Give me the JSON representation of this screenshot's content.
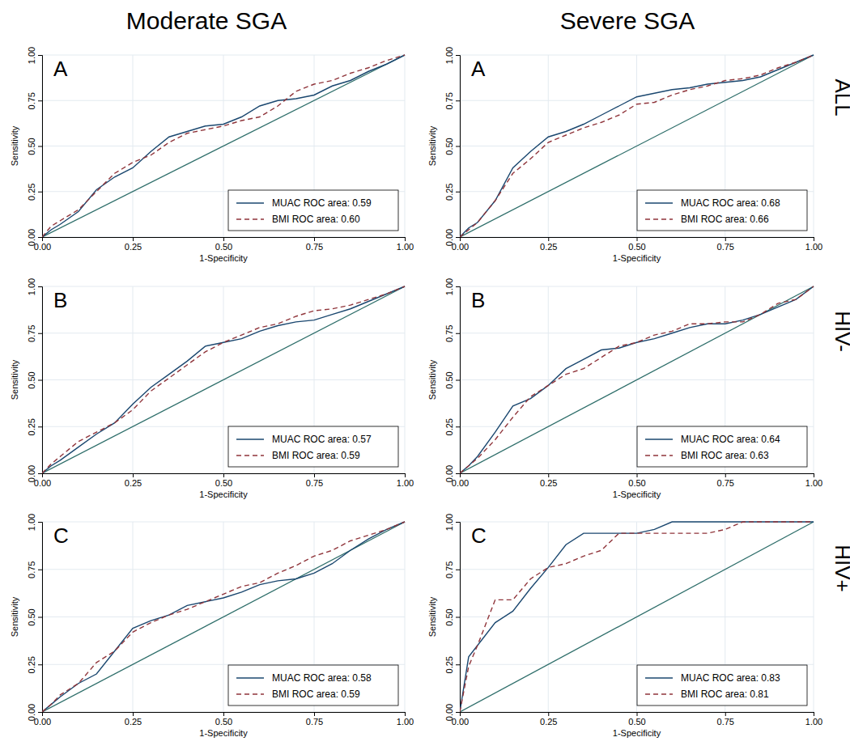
{
  "column_titles": [
    "Moderate SGA",
    "Severe SGA"
  ],
  "row_labels": [
    "ALL",
    "HIV-",
    "HIV+"
  ],
  "chart_data": [
    {
      "type": "line",
      "title": "A",
      "x_label": "1-Specificity",
      "y_label": "Sensitivity",
      "x": [
        0,
        0.025,
        0.05,
        0.1,
        0.15,
        0.2,
        0.25,
        0.3,
        0.35,
        0.4,
        0.45,
        0.5,
        0.55,
        0.6,
        0.65,
        0.7,
        0.75,
        0.8,
        0.85,
        0.9,
        0.95,
        1
      ],
      "xlim": [
        0,
        1
      ],
      "ylim": [
        0,
        1
      ],
      "xticks": [
        {
          "value": 0,
          "label": "0.00"
        },
        {
          "value": 0.25,
          "label": "0.25"
        },
        {
          "value": 0.5,
          "label": "0.50"
        },
        {
          "value": 0.75,
          "label": "0.75"
        },
        {
          "value": 1,
          "label": "1.00"
        }
      ],
      "yticks": [
        {
          "value": 0,
          "label": "0.00"
        },
        {
          "value": 0.25,
          "label": "0.25"
        },
        {
          "value": 0.5,
          "label": "0.50"
        },
        {
          "value": 0.75,
          "label": "0.75"
        },
        {
          "value": 1,
          "label": "1.00"
        }
      ],
      "grid": true,
      "legend": "lower right",
      "reference_line": {
        "x": [
          0,
          1
        ],
        "y": [
          0,
          1
        ],
        "color": "#2e6e6a"
      },
      "series": [
        {
          "name": "MUAC ROC area: 0.59",
          "color": "#1a476f",
          "line_style": "solid",
          "values": [
            0,
            0.04,
            0.07,
            0.14,
            0.26,
            0.33,
            0.38,
            0.47,
            0.55,
            0.58,
            0.61,
            0.62,
            0.66,
            0.72,
            0.75,
            0.76,
            0.78,
            0.83,
            0.86,
            0.91,
            0.95,
            1
          ]
        },
        {
          "name": "BMI ROC area: 0.60",
          "color": "#90353b",
          "line_style": "dashed",
          "values": [
            0,
            0.06,
            0.09,
            0.15,
            0.25,
            0.35,
            0.41,
            0.45,
            0.52,
            0.57,
            0.59,
            0.61,
            0.64,
            0.66,
            0.72,
            0.8,
            0.84,
            0.86,
            0.9,
            0.93,
            0.97,
            1
          ]
        }
      ]
    },
    {
      "type": "line",
      "title": "A",
      "x_label": "1-Specificity",
      "y_label": "Sensitivity",
      "x": [
        0,
        0.025,
        0.05,
        0.1,
        0.15,
        0.2,
        0.25,
        0.3,
        0.35,
        0.4,
        0.45,
        0.5,
        0.55,
        0.6,
        0.65,
        0.7,
        0.75,
        0.8,
        0.85,
        0.9,
        0.95,
        1
      ],
      "xlim": [
        0,
        1
      ],
      "ylim": [
        0,
        1
      ],
      "xticks": [
        {
          "value": 0,
          "label": "0.00"
        },
        {
          "value": 0.25,
          "label": "0.25"
        },
        {
          "value": 0.5,
          "label": "0.50"
        },
        {
          "value": 0.75,
          "label": "0.75"
        },
        {
          "value": 1,
          "label": "1.00"
        }
      ],
      "yticks": [
        {
          "value": 0,
          "label": "0.00"
        },
        {
          "value": 0.25,
          "label": "0.25"
        },
        {
          "value": 0.5,
          "label": "0.50"
        },
        {
          "value": 0.75,
          "label": "0.75"
        },
        {
          "value": 1,
          "label": "1.00"
        }
      ],
      "grid": true,
      "legend": "lower right",
      "reference_line": {
        "x": [
          0,
          1
        ],
        "y": [
          0,
          1
        ],
        "color": "#2e6e6a"
      },
      "series": [
        {
          "name": "MUAC ROC area: 0.68",
          "color": "#1a476f",
          "line_style": "solid",
          "values": [
            0,
            0.05,
            0.08,
            0.2,
            0.38,
            0.47,
            0.55,
            0.58,
            0.62,
            0.67,
            0.72,
            0.77,
            0.79,
            0.81,
            0.82,
            0.84,
            0.85,
            0.86,
            0.88,
            0.92,
            0.96,
            1
          ]
        },
        {
          "name": "BMI ROC area: 0.66",
          "color": "#90353b",
          "line_style": "dashed",
          "values": [
            0,
            0.04,
            0.08,
            0.2,
            0.35,
            0.43,
            0.52,
            0.56,
            0.6,
            0.63,
            0.67,
            0.73,
            0.74,
            0.78,
            0.81,
            0.83,
            0.86,
            0.87,
            0.89,
            0.93,
            0.96,
            1
          ]
        }
      ]
    },
    {
      "type": "line",
      "title": "B",
      "x_label": "1-Specificity",
      "y_label": "Sensitivity",
      "x": [
        0,
        0.025,
        0.05,
        0.1,
        0.15,
        0.2,
        0.25,
        0.3,
        0.35,
        0.4,
        0.45,
        0.5,
        0.55,
        0.6,
        0.65,
        0.7,
        0.75,
        0.8,
        0.85,
        0.9,
        0.95,
        1
      ],
      "xlim": [
        0,
        1
      ],
      "ylim": [
        0,
        1
      ],
      "xticks": [
        {
          "value": 0,
          "label": "0.00"
        },
        {
          "value": 0.25,
          "label": "0.25"
        },
        {
          "value": 0.5,
          "label": "0.50"
        },
        {
          "value": 0.75,
          "label": "0.75"
        },
        {
          "value": 1,
          "label": "1.00"
        }
      ],
      "yticks": [
        {
          "value": 0,
          "label": "0.00"
        },
        {
          "value": 0.25,
          "label": "0.25"
        },
        {
          "value": 0.5,
          "label": "0.50"
        },
        {
          "value": 0.75,
          "label": "0.75"
        },
        {
          "value": 1,
          "label": "1.00"
        }
      ],
      "grid": true,
      "legend": "lower right",
      "reference_line": {
        "x": [
          0,
          1
        ],
        "y": [
          0,
          1
        ],
        "color": "#2e6e6a"
      },
      "series": [
        {
          "name": "MUAC ROC area: 0.57",
          "color": "#1a476f",
          "line_style": "solid",
          "values": [
            0,
            0.04,
            0.07,
            0.14,
            0.21,
            0.27,
            0.37,
            0.46,
            0.53,
            0.6,
            0.68,
            0.7,
            0.72,
            0.76,
            0.79,
            0.81,
            0.82,
            0.85,
            0.88,
            0.92,
            0.96,
            1
          ]
        },
        {
          "name": "BMI ROC area: 0.59",
          "color": "#90353b",
          "line_style": "dashed",
          "values": [
            0,
            0.05,
            0.09,
            0.17,
            0.22,
            0.27,
            0.34,
            0.44,
            0.51,
            0.58,
            0.65,
            0.7,
            0.74,
            0.78,
            0.8,
            0.84,
            0.87,
            0.88,
            0.9,
            0.93,
            0.96,
            1
          ]
        }
      ]
    },
    {
      "type": "line",
      "title": "B",
      "x_label": "1-Specificity",
      "y_label": "Sensitivity",
      "x": [
        0,
        0.025,
        0.05,
        0.1,
        0.15,
        0.2,
        0.25,
        0.3,
        0.35,
        0.4,
        0.45,
        0.5,
        0.55,
        0.6,
        0.65,
        0.7,
        0.75,
        0.8,
        0.85,
        0.9,
        0.95,
        1
      ],
      "xlim": [
        0,
        1
      ],
      "ylim": [
        0,
        1
      ],
      "xticks": [
        {
          "value": 0,
          "label": "0.00"
        },
        {
          "value": 0.25,
          "label": "0.25"
        },
        {
          "value": 0.5,
          "label": "0.50"
        },
        {
          "value": 0.75,
          "label": "0.75"
        },
        {
          "value": 1,
          "label": "1.00"
        }
      ],
      "yticks": [
        {
          "value": 0,
          "label": "0.00"
        },
        {
          "value": 0.25,
          "label": "0.25"
        },
        {
          "value": 0.5,
          "label": "0.50"
        },
        {
          "value": 0.75,
          "label": "0.75"
        },
        {
          "value": 1,
          "label": "1.00"
        }
      ],
      "grid": true,
      "legend": "lower right",
      "reference_line": {
        "x": [
          0,
          1
        ],
        "y": [
          0,
          1
        ],
        "color": "#2e6e6a"
      },
      "series": [
        {
          "name": "MUAC ROC area: 0.64",
          "color": "#1a476f",
          "line_style": "solid",
          "values": [
            0,
            0.04,
            0.09,
            0.22,
            0.36,
            0.4,
            0.47,
            0.56,
            0.61,
            0.66,
            0.67,
            0.7,
            0.72,
            0.75,
            0.78,
            0.8,
            0.8,
            0.82,
            0.85,
            0.89,
            0.93,
            1
          ]
        },
        {
          "name": "BMI ROC area: 0.63",
          "color": "#90353b",
          "line_style": "dashed",
          "values": [
            0,
            0.04,
            0.08,
            0.18,
            0.3,
            0.41,
            0.47,
            0.53,
            0.56,
            0.62,
            0.68,
            0.7,
            0.74,
            0.76,
            0.8,
            0.8,
            0.81,
            0.81,
            0.85,
            0.91,
            0.93,
            1
          ]
        }
      ]
    },
    {
      "type": "line",
      "title": "C",
      "x_label": "1-Specificity",
      "y_label": "Sensitivity",
      "x": [
        0,
        0.025,
        0.05,
        0.1,
        0.15,
        0.2,
        0.25,
        0.3,
        0.35,
        0.4,
        0.45,
        0.5,
        0.55,
        0.6,
        0.65,
        0.7,
        0.75,
        0.8,
        0.85,
        0.9,
        0.95,
        1
      ],
      "xlim": [
        0,
        1
      ],
      "ylim": [
        0,
        1
      ],
      "xticks": [
        {
          "value": 0,
          "label": "0.00"
        },
        {
          "value": 0.25,
          "label": "0.25"
        },
        {
          "value": 0.5,
          "label": "0.50"
        },
        {
          "value": 0.75,
          "label": "0.75"
        },
        {
          "value": 1,
          "label": "1.00"
        }
      ],
      "yticks": [
        {
          "value": 0,
          "label": "0.00"
        },
        {
          "value": 0.25,
          "label": "0.25"
        },
        {
          "value": 0.5,
          "label": "0.50"
        },
        {
          "value": 0.75,
          "label": "0.75"
        },
        {
          "value": 1,
          "label": "1.00"
        }
      ],
      "grid": true,
      "legend": "lower right",
      "reference_line": {
        "x": [
          0,
          1
        ],
        "y": [
          0,
          1
        ],
        "color": "#2e6e6a"
      },
      "series": [
        {
          "name": "MUAC ROC area: 0.58",
          "color": "#1a476f",
          "line_style": "solid",
          "values": [
            0,
            0.04,
            0.08,
            0.15,
            0.2,
            0.32,
            0.44,
            0.48,
            0.51,
            0.56,
            0.58,
            0.6,
            0.63,
            0.67,
            0.69,
            0.7,
            0.73,
            0.78,
            0.85,
            0.91,
            0.96,
            1
          ]
        },
        {
          "name": "BMI ROC area: 0.59",
          "color": "#90353b",
          "line_style": "dashed",
          "values": [
            0,
            0.04,
            0.09,
            0.15,
            0.26,
            0.32,
            0.42,
            0.47,
            0.51,
            0.54,
            0.58,
            0.62,
            0.66,
            0.68,
            0.73,
            0.77,
            0.82,
            0.85,
            0.9,
            0.93,
            0.96,
            1
          ]
        }
      ]
    },
    {
      "type": "line",
      "title": "C",
      "x_label": "1-Specificity",
      "y_label": "Sensitivity",
      "x": [
        0,
        0.025,
        0.05,
        0.1,
        0.15,
        0.2,
        0.25,
        0.3,
        0.35,
        0.4,
        0.45,
        0.5,
        0.55,
        0.6,
        0.65,
        0.7,
        0.75,
        0.8,
        0.85,
        0.9,
        0.95,
        1
      ],
      "xlim": [
        0,
        1
      ],
      "ylim": [
        0,
        1
      ],
      "xticks": [
        {
          "value": 0,
          "label": "0.00"
        },
        {
          "value": 0.25,
          "label": "0.25"
        },
        {
          "value": 0.5,
          "label": "0.50"
        },
        {
          "value": 0.75,
          "label": "0.75"
        },
        {
          "value": 1,
          "label": "1.00"
        }
      ],
      "yticks": [
        {
          "value": 0,
          "label": "0.00"
        },
        {
          "value": 0.25,
          "label": "0.25"
        },
        {
          "value": 0.5,
          "label": "0.50"
        },
        {
          "value": 0.75,
          "label": "0.75"
        },
        {
          "value": 1,
          "label": "1.00"
        }
      ],
      "grid": true,
      "legend": "lower right",
      "reference_line": {
        "x": [
          0,
          1
        ],
        "y": [
          0,
          1
        ],
        "color": "#2e6e6a"
      },
      "series": [
        {
          "name": "MUAC ROC area: 0.83",
          "color": "#1a476f",
          "line_style": "solid",
          "values": [
            0,
            0.29,
            0.35,
            0.47,
            0.53,
            0.65,
            0.76,
            0.88,
            0.94,
            0.94,
            0.94,
            0.94,
            0.96,
            1,
            1,
            1,
            1,
            1,
            1,
            1,
            1,
            1
          ]
        },
        {
          "name": "BMI ROC area: 0.81",
          "color": "#90353b",
          "line_style": "dashed",
          "values": [
            0,
            0.24,
            0.35,
            0.59,
            0.59,
            0.7,
            0.76,
            0.78,
            0.82,
            0.85,
            0.94,
            0.94,
            0.94,
            0.94,
            0.94,
            0.94,
            0.96,
            1,
            1,
            1,
            1,
            1
          ]
        }
      ]
    }
  ]
}
